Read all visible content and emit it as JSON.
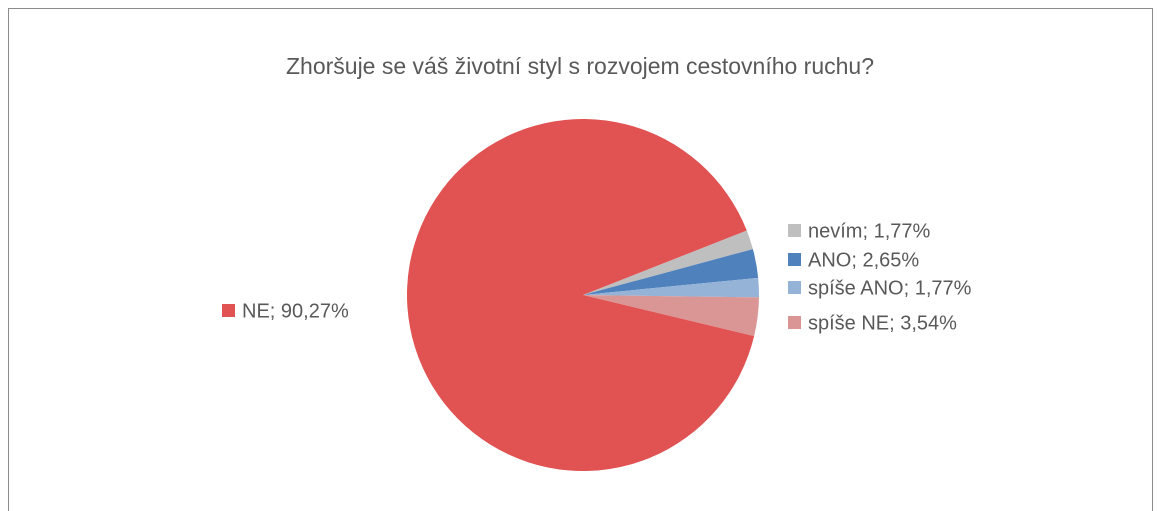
{
  "chart_data": {
    "type": "pie",
    "title": "Zhoršuje se váš životní styl s rozvojem cestovního ruchu?",
    "categories": [
      "nevím",
      "ANO",
      "spíše ANO",
      "spíše NE",
      "NE"
    ],
    "values": [
      1.77,
      2.65,
      1.77,
      3.54,
      90.27
    ],
    "value_labels": [
      "nevím; 1,77%",
      "ANO; 2,65%",
      "spíše ANO; 1,77%",
      "spíše NE; 3,54%",
      "NE; 90,27%"
    ],
    "colors": [
      "#bfbfbf",
      "#4f81bd",
      "#95b3d7",
      "#d99694",
      "#e15252"
    ]
  }
}
